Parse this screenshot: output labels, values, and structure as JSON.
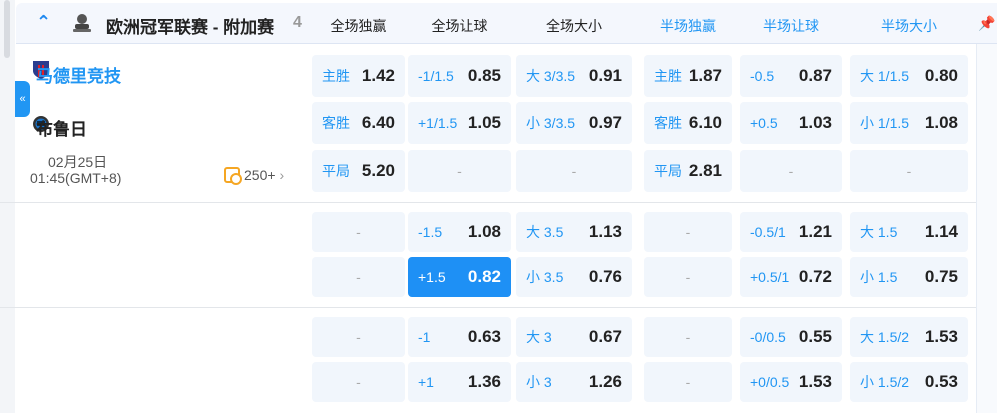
{
  "league": {
    "name": "欧洲冠军联赛 - 附加赛",
    "count": "4",
    "collapse_icon": "chevron-up-icon"
  },
  "columns": [
    "全场独赢",
    "全场让球",
    "全场大小",
    "半场独赢",
    "半场让球",
    "半场大小"
  ],
  "match": {
    "home": "马德里竞技",
    "away": "布鲁日",
    "date": "02月25日",
    "time": "01:45(GMT+8)",
    "more_markets": "250+"
  },
  "sidebar_toggle": "«",
  "colors": {
    "accent": "#2196f3",
    "highlight": "#1e90f5"
  },
  "groups": [
    {
      "rows": [
        [
          {
            "l": "主胜",
            "v": "1.42"
          },
          {
            "l": "-1/1.5",
            "v": "0.85"
          },
          {
            "l": "大 3/3.5",
            "v": "0.91"
          },
          {
            "l": "主胜",
            "v": "1.87"
          },
          {
            "l": "-0.5",
            "v": "0.87"
          },
          {
            "l": "大 1/1.5",
            "v": "0.80"
          }
        ],
        [
          {
            "l": "客胜",
            "v": "6.40"
          },
          {
            "l": "+1/1.5",
            "v": "1.05"
          },
          {
            "l": "小 3/3.5",
            "v": "0.97"
          },
          {
            "l": "客胜",
            "v": "6.10"
          },
          {
            "l": "+0.5",
            "v": "1.03"
          },
          {
            "l": "小 1/1.5",
            "v": "1.08"
          }
        ],
        [
          {
            "l": "平局",
            "v": "5.20"
          },
          {
            "e": "-"
          },
          {
            "e": "-"
          },
          {
            "l": "平局",
            "v": "2.81"
          },
          {
            "e": "-"
          },
          {
            "e": "-"
          }
        ]
      ]
    },
    {
      "rows": [
        [
          {
            "e": "-"
          },
          {
            "l": "-1.5",
            "v": "1.08"
          },
          {
            "l": "大 3.5",
            "v": "1.13"
          },
          {
            "e": "-"
          },
          {
            "l": "-0.5/1",
            "v": "1.21"
          },
          {
            "l": "大 1.5",
            "v": "1.14"
          }
        ],
        [
          {
            "e": "-"
          },
          {
            "l": "+1.5",
            "v": "0.82",
            "hl": true
          },
          {
            "l": "小 3.5",
            "v": "0.76"
          },
          {
            "e": "-"
          },
          {
            "l": "+0.5/1",
            "v": "0.72"
          },
          {
            "l": "小 1.5",
            "v": "0.75"
          }
        ]
      ]
    },
    {
      "rows": [
        [
          {
            "e": "-"
          },
          {
            "l": "-1",
            "v": "0.63"
          },
          {
            "l": "大 3",
            "v": "0.67"
          },
          {
            "e": "-"
          },
          {
            "l": "-0/0.5",
            "v": "0.55"
          },
          {
            "l": "大 1.5/2",
            "v": "1.53"
          }
        ],
        [
          {
            "e": "-"
          },
          {
            "l": "+1",
            "v": "1.36"
          },
          {
            "l": "小 3",
            "v": "1.26"
          },
          {
            "e": "-"
          },
          {
            "l": "+0/0.5",
            "v": "1.53"
          },
          {
            "l": "小 1.5/2",
            "v": "0.53"
          }
        ]
      ]
    }
  ]
}
